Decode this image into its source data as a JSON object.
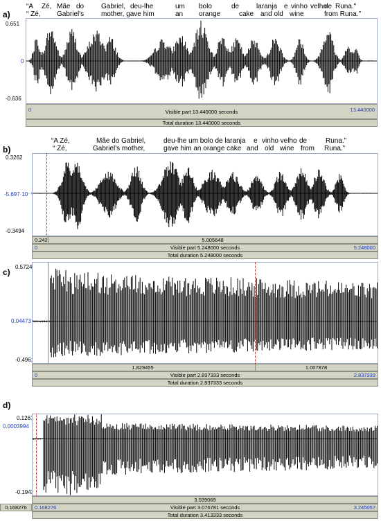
{
  "panels": [
    {
      "label": "a)",
      "lyrics_pt": [
        "“A",
        "Zé,",
        "Mãe",
        "do",
        "Gabriel,",
        "deu-lhe",
        "um",
        "bolo",
        "de",
        "laranja",
        "e",
        "vinho",
        "velho",
        "de",
        "Runa.\""
      ],
      "lyrics_en": [
        "“ Zé,",
        "Gabriel's",
        "mother, gave him",
        "an",
        "orange",
        "cake",
        "and old",
        "wine",
        "from Runa.\""
      ],
      "y_top": "0.651",
      "y_mid": "0",
      "y_bot": "-0.636",
      "x_start": "0",
      "x_end": "13.440000",
      "selection_values": [],
      "visible_part": "Visible part 13.440000 seconds",
      "total_duration": "Total duration 13.440000 seconds"
    },
    {
      "label": "b)",
      "lyrics_pt": [
        "“A Zé,",
        "Mãe do Gabriel,",
        "deu-lhe um bolo de laranja",
        "e",
        "vinho velho",
        "de",
        "Runa.”"
      ],
      "lyrics_en": [
        "“ Zé,",
        "Gabriel's mother,",
        "gave him an orange cake",
        "and",
        "old",
        "wine",
        "from",
        "Runa.”"
      ],
      "y_top": "0.3262",
      "y_mid": "-5.697·10⁻⁵",
      "y_bot": "-0.3494",
      "x_start": "0",
      "x_end": "5.248000",
      "selection_values": [
        "0.242",
        "5.005648"
      ],
      "visible_part": "Visible part 5.248000 seconds",
      "total_duration": "Total duration 5.248000 seconds"
    },
    {
      "label": "c)",
      "lyrics_pt": [],
      "lyrics_en": [],
      "y_top": "0.5724",
      "y_mid": "0.04473",
      "y_bot": "-0.4961",
      "x_start": "0",
      "x_end": "2.837333",
      "selection_values": [
        "1.829455",
        "1.007878"
      ],
      "visible_part": "Visible part 2.837333 seconds",
      "total_duration": "Total duration 2.837333 seconds"
    },
    {
      "label": "d)",
      "lyrics_pt": [],
      "lyrics_en": [],
      "y_top": "0.1261",
      "y_mid": "0.0003994",
      "y_bot": "-0.1943",
      "x_start": "0.168276",
      "x_end": "3.245057",
      "selection_values": [
        "3.039069"
      ],
      "left_offset": "0.168276",
      "visible_part": "Visible part 3.076781 seconds",
      "total_duration": "Total duration 3.413333 seconds"
    }
  ]
}
